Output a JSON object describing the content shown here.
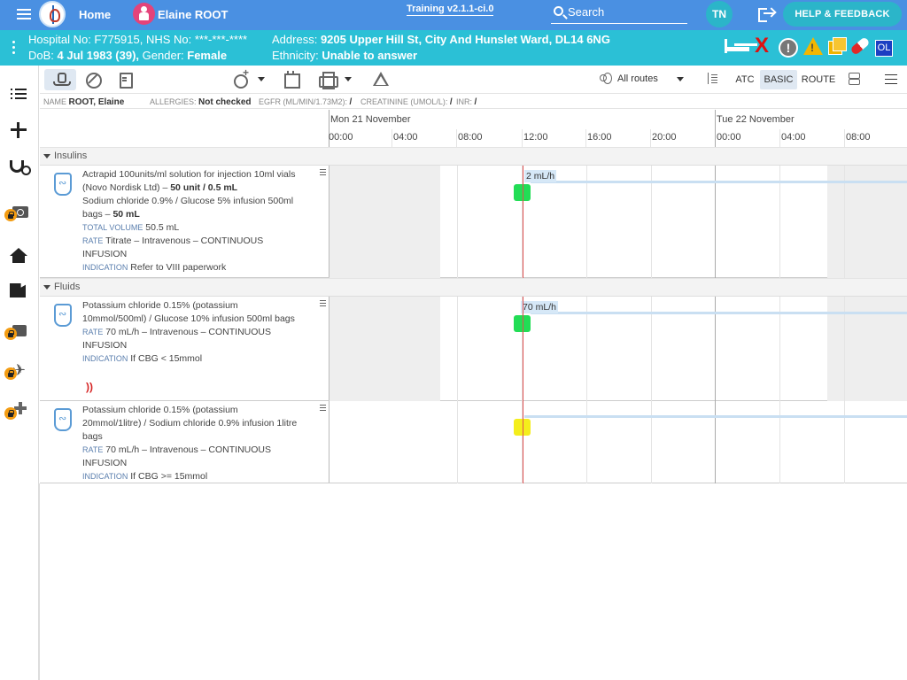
{
  "header": {
    "home": "Home",
    "patient_name": "Elaine ROOT",
    "version": "Training v2.1.1-ci.0",
    "search_label": "Search",
    "user_initials": "TN",
    "help": "HELP & FEEDBACK"
  },
  "banner": {
    "hospital_no": "Hospital No: F775915, NHS No: ***-***-****",
    "dob_label": "DoB:",
    "dob": "4 Jul 1983 (39),",
    "gender_label": "Gender:",
    "gender": "Female",
    "address_label": "Address:",
    "address": "9205 Upper Hill St, City And Hunslet Ward, DL14 6NG",
    "ethnicity_label": "Ethnicity:",
    "ethnicity": "Unable to answer",
    "ol": "OL",
    "red_x": "X",
    "excl": "!"
  },
  "toolbar": {
    "routes": "All routes",
    "atc": "ATC",
    "basic": "BASIC",
    "route": "ROUTE"
  },
  "info": {
    "name_label": "NAME",
    "name": "ROOT, Elaine",
    "allergies_label": "ALLERGIES:",
    "allergies": "Not checked",
    "egfr_label": "EGFR (ML/MIN/1.73M2):",
    "egfr": "/",
    "creat_label": "CREATININE (UMOL/L):",
    "creat": "/",
    "inr_label": "INR:",
    "inr": "/"
  },
  "timeline": {
    "days": [
      "Mon 21 November",
      "Tue 22 November"
    ],
    "hours": [
      "00:00",
      "04:00",
      "08:00",
      "12:00",
      "16:00",
      "20:00",
      "00:00",
      "04:00",
      "08:00"
    ]
  },
  "groups": {
    "insulins": "Insulins",
    "fluids": "Fluids"
  },
  "meds": [
    {
      "line1": "Actrapid 100units/ml solution for injection 10ml vials (Novo Nordisk Ltd) –",
      "dose1": "50 unit / 0.5 mL",
      "line2": "Sodium chloride 0.9% / Glucose 5% infusion 500ml bags –",
      "dose2": "50 mL",
      "tv_label": "TOTAL VOLUME",
      "tv": "50.5 mL",
      "rate_label": "RATE",
      "rate": "Titrate – Intravenous – CONTINUOUS INFUSION",
      "ind_label": "INDICATION",
      "indication": "Refer to VIII paperwork",
      "chart_rate": "2 mL/h",
      "marker_color": "#22dd55"
    },
    {
      "line1": "Potassium chloride 0.15% (potassium 10mmol/500ml) / Glucose 10% infusion 500ml bags",
      "rate_label": "RATE",
      "rate": "70 mL/h – Intravenous – CONTINUOUS INFUSION",
      "ind_label": "INDICATION",
      "indication": "If CBG < 15mmol",
      "chart_rate": "70 mL/h",
      "marker_color": "#22dd55"
    },
    {
      "line1": "Potassium chloride 0.15% (potassium 20mmol/1litre) / Sodium chloride 0.9% infusion 1litre bags",
      "rate_label": "RATE",
      "rate": "70 mL/h – Intravenous – CONTINUOUS INFUSION",
      "ind_label": "INDICATION",
      "indication": "If CBG >= 15mmol",
      "marker_color": "#f4ee1c"
    }
  ],
  "colors": {
    "header": "#4a90e2",
    "banner": "#2bc0d6",
    "now_line": "#e05050"
  }
}
